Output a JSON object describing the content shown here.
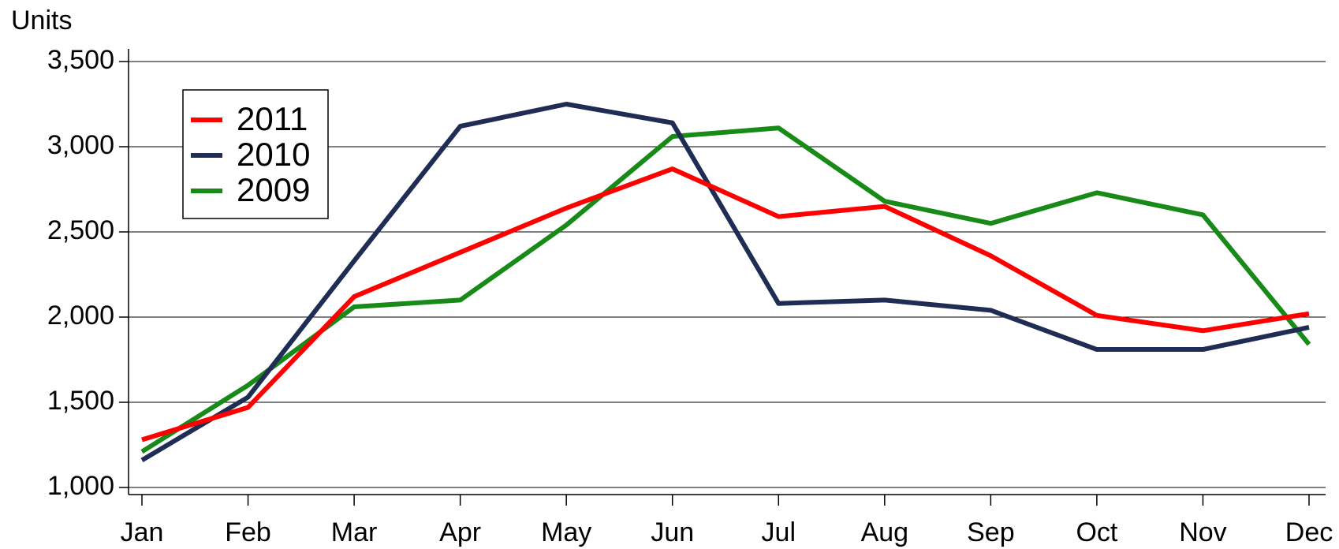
{
  "chart_data": {
    "type": "line",
    "y_label": "Units",
    "categories": [
      "Jan",
      "Feb",
      "Mar",
      "Apr",
      "May",
      "Jun",
      "Jul",
      "Aug",
      "Sep",
      "Oct",
      "Nov",
      "Dec"
    ],
    "series": [
      {
        "name": "2011",
        "color": "#ff0000",
        "values": [
          1280,
          1470,
          2120,
          2380,
          2640,
          2870,
          2590,
          2650,
          2360,
          2010,
          1920,
          2020
        ]
      },
      {
        "name": "2010",
        "color": "#1f2d54",
        "values": [
          1160,
          1530,
          2330,
          3120,
          3250,
          3140,
          2080,
          2100,
          2040,
          1810,
          1810,
          1940
        ]
      },
      {
        "name": "2009",
        "color": "#188a18",
        "values": [
          1210,
          1600,
          2060,
          2100,
          2540,
          3060,
          3110,
          2680,
          2550,
          2730,
          2600,
          1840
        ]
      }
    ],
    "ylim": [
      1000,
      3500
    ],
    "yticks": [
      {
        "value": 1000,
        "label": "1,000"
      },
      {
        "value": 1500,
        "label": "1,500"
      },
      {
        "value": 2000,
        "label": "2,000"
      },
      {
        "value": 2500,
        "label": "2,500"
      },
      {
        "value": 3000,
        "label": "3,000"
      },
      {
        "value": 3500,
        "label": "3,500"
      }
    ],
    "grid": true,
    "legend": "upper-left"
  }
}
